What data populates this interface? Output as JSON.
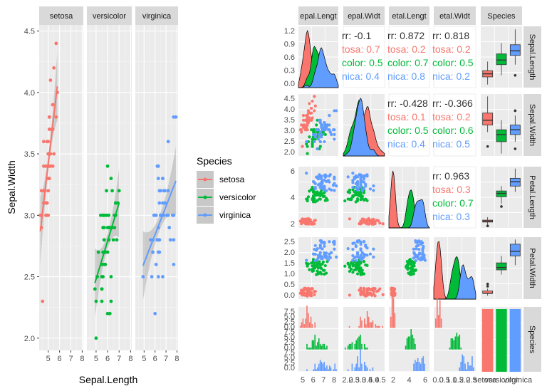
{
  "colors": {
    "setosa": "#F8766D",
    "versicolor": "#00BA38",
    "virginica": "#619CFF",
    "panel": "#EBEBEB",
    "strip": "#D9D9D9",
    "grid": "#FFFFFF"
  },
  "chart_data": [
    {
      "type": "scatter",
      "xlabel": "Sepal.Length",
      "ylabel": "Sepal.Width",
      "facets": [
        "setosa",
        "versicolor",
        "virginica"
      ],
      "xlim": [
        4.2,
        8.1
      ],
      "ylim": [
        1.9,
        4.55
      ],
      "xticks": [
        5,
        6,
        7,
        8
      ],
      "yticks": [
        2.0,
        2.5,
        3.0,
        3.5,
        4.0,
        4.5
      ],
      "ytick_labels": [
        "2.0",
        "2.5",
        "3.0",
        "3.5",
        "4.0",
        "4.5"
      ],
      "legend": {
        "title": "Species",
        "items": [
          "setosa",
          "versicolor",
          "virginica"
        ],
        "position": "right"
      },
      "series": [
        {
          "name": "setosa",
          "x": [
            5.1,
            4.9,
            4.7,
            4.6,
            5.0,
            5.4,
            4.6,
            5.0,
            4.4,
            4.9,
            5.4,
            4.8,
            4.8,
            4.3,
            5.8,
            5.7,
            5.4,
            5.1,
            5.7,
            5.1,
            5.4,
            5.1,
            4.6,
            5.1,
            4.8,
            5.0,
            5.0,
            5.2,
            5.2,
            4.7,
            4.8,
            5.4,
            5.2,
            5.5,
            4.9,
            5.0,
            5.5,
            4.9,
            4.4,
            5.1,
            5.0,
            4.5,
            4.4,
            5.0,
            5.1,
            4.8,
            5.1,
            4.6,
            5.3,
            5.0
          ],
          "y": [
            3.5,
            3.0,
            3.2,
            3.1,
            3.6,
            3.9,
            3.4,
            3.4,
            2.9,
            3.1,
            3.7,
            3.4,
            3.0,
            3.0,
            4.0,
            4.4,
            3.9,
            3.5,
            3.8,
            3.8,
            3.4,
            3.7,
            3.6,
            3.3,
            3.4,
            3.0,
            3.4,
            3.5,
            3.4,
            3.2,
            3.1,
            3.4,
            4.1,
            4.2,
            3.1,
            3.2,
            3.5,
            3.6,
            3.0,
            3.4,
            3.5,
            2.3,
            3.2,
            3.5,
            3.8,
            3.0,
            3.8,
            3.2,
            3.7,
            3.3
          ],
          "fit": [
            [
              4.3,
              2.87
            ],
            [
              5.8,
              4.05
            ]
          ]
        },
        {
          "name": "versicolor",
          "x": [
            7.0,
            6.4,
            6.9,
            5.5,
            6.5,
            5.7,
            6.3,
            4.9,
            6.6,
            5.2,
            5.0,
            5.9,
            6.0,
            6.1,
            5.6,
            6.7,
            5.6,
            5.8,
            6.2,
            5.6,
            5.9,
            6.1,
            6.3,
            6.1,
            6.4,
            6.6,
            6.8,
            6.7,
            6.0,
            5.7,
            5.5,
            5.5,
            5.8,
            6.0,
            5.4,
            6.0,
            6.7,
            6.3,
            5.6,
            5.5,
            5.5,
            6.1,
            5.8,
            5.0,
            5.6,
            5.7,
            5.7,
            6.2,
            5.1,
            5.7
          ],
          "y": [
            3.2,
            3.2,
            3.1,
            2.3,
            2.8,
            2.8,
            3.3,
            2.4,
            2.9,
            2.7,
            2.0,
            3.0,
            2.2,
            2.9,
            2.9,
            3.1,
            3.0,
            2.7,
            2.2,
            2.5,
            3.2,
            2.8,
            2.5,
            2.8,
            2.9,
            3.0,
            2.8,
            3.0,
            2.9,
            2.6,
            2.4,
            2.4,
            2.7,
            2.7,
            3.0,
            3.4,
            3.1,
            2.3,
            3.0,
            2.5,
            2.6,
            3.0,
            2.6,
            2.3,
            2.7,
            3.0,
            2.9,
            2.9,
            2.5,
            2.8
          ],
          "fit": [
            [
              4.9,
              2.45
            ],
            [
              7.0,
              3.1
            ]
          ]
        },
        {
          "name": "virginica",
          "x": [
            6.3,
            5.8,
            7.1,
            6.3,
            6.5,
            7.6,
            4.9,
            7.3,
            6.7,
            7.2,
            6.5,
            6.4,
            6.8,
            5.7,
            5.8,
            6.4,
            6.5,
            7.7,
            7.7,
            6.0,
            6.9,
            5.6,
            7.7,
            6.3,
            6.7,
            7.2,
            6.2,
            6.1,
            6.4,
            7.2,
            7.4,
            7.9,
            6.4,
            6.3,
            6.1,
            7.7,
            6.3,
            6.4,
            6.0,
            6.9,
            6.7,
            6.9,
            5.8,
            6.8,
            6.7,
            6.7,
            6.3,
            6.5,
            6.2,
            5.9
          ],
          "y": [
            3.3,
            2.7,
            3.0,
            2.9,
            3.0,
            3.0,
            2.5,
            2.9,
            2.5,
            3.6,
            3.2,
            2.7,
            3.0,
            2.5,
            2.8,
            3.2,
            3.0,
            3.8,
            2.6,
            2.2,
            3.2,
            2.8,
            2.8,
            2.7,
            3.3,
            3.2,
            2.8,
            3.0,
            2.8,
            3.0,
            2.8,
            3.8,
            2.8,
            2.8,
            2.6,
            3.0,
            3.4,
            3.1,
            3.0,
            3.1,
            3.1,
            3.1,
            2.7,
            3.2,
            3.3,
            3.0,
            2.5,
            3.0,
            3.4,
            3.0
          ],
          "fit": [
            [
              4.9,
              2.59
            ],
            [
              7.9,
              3.28
            ]
          ]
        }
      ]
    },
    {
      "type": "scatter",
      "subtype": "pairs-matrix",
      "variables": [
        "Sepal.Length",
        "Sepal.Width",
        "Petal.Length",
        "Petal.Width",
        "Species"
      ],
      "column_strip_labels": [
        "epal.Lengt",
        "epal.Widt",
        "etal.Lengt",
        "etal.Widt",
        "Species"
      ],
      "row_strip_labels": [
        "Sepal.Length",
        "Sepal.Width",
        "Petal.Length",
        "Petal.Width",
        "Species"
      ],
      "correlation_text": [
        {
          "row": 0,
          "col": 1,
          "lines": [
            "rr: -0.1",
            "tosa: 0.7",
            "color: 0.5",
            "nica: 0.4"
          ]
        },
        {
          "row": 0,
          "col": 2,
          "lines": [
            "rr: 0.872",
            "tosa: 0.2",
            "color: 0.7",
            "nica: 0.8"
          ]
        },
        {
          "row": 0,
          "col": 3,
          "lines": [
            "rr: 0.818",
            "tosa: 0.2",
            "color: 0.5",
            "nica: 0.2"
          ]
        },
        {
          "row": 1,
          "col": 2,
          "lines": [
            "rr: -0.428",
            "tosa: 0.1",
            "color: 0.5",
            "nica: 0.4"
          ]
        },
        {
          "row": 1,
          "col": 3,
          "lines": [
            "rr: -0.366",
            "tosa: 0.2",
            "color: 0.6",
            "nica: 0.5"
          ]
        },
        {
          "row": 2,
          "col": 3,
          "lines": [
            "rr: 0.963",
            "tosa: 0.3",
            "color: 0.7",
            "nica: 0.3"
          ]
        }
      ],
      "row_ticks": [
        [
          "1.2",
          "0.9",
          "0.6",
          "0.3",
          "0.0"
        ],
        [
          "4.5",
          "4.0",
          "3.5",
          "3.0",
          "2.5",
          "2.0"
        ],
        [
          "6",
          "4",
          "2"
        ],
        [
          "2.5",
          "2.0",
          "1.5",
          "1.0",
          "0.5",
          "0.0"
        ],
        [
          "7.5",
          "5.0",
          "2.5",
          "0.0",
          "7.5",
          "5.0",
          "2.5",
          "0.0",
          "7.5",
          "5.0",
          "2.5",
          "0.0"
        ]
      ],
      "col_ticks": [
        [
          "5",
          "6",
          "7",
          "8"
        ],
        [
          "2.0",
          "2.5",
          "3.0",
          "3.5",
          "4.0",
          "4.5"
        ],
        [
          "2",
          "4",
          "6"
        ],
        [
          "0.0",
          "0.5",
          "1.0",
          "1.5",
          "2.0",
          "2.5"
        ],
        [
          "setosa",
          "versicolor",
          "virginica"
        ]
      ],
      "boxplot_stats": {
        "Sepal.Length": {
          "setosa": [
            4.3,
            4.8,
            5.0,
            5.2,
            5.8
          ],
          "versicolor": [
            4.9,
            5.6,
            5.9,
            6.3,
            7.0
          ],
          "virginica": [
            5.6,
            6.2,
            6.5,
            6.9,
            7.9
          ],
          "outliers": {
            "virginica": [
              4.9
            ]
          }
        },
        "Sepal.Width": {
          "setosa": [
            2.9,
            3.2,
            3.4,
            3.7,
            4.4
          ],
          "versicolor": [
            2.0,
            2.5,
            2.8,
            3.0,
            3.4
          ],
          "virginica": [
            2.5,
            2.8,
            3.0,
            3.2,
            3.6
          ],
          "outliers": {
            "setosa": [
              2.3
            ],
            "virginica": [
              2.2,
              3.8,
              3.8
            ]
          }
        },
        "Petal.Length": {
          "setosa": [
            1.1,
            1.4,
            1.5,
            1.6,
            1.9
          ],
          "versicolor": [
            3.3,
            4.0,
            4.35,
            4.6,
            5.1
          ],
          "virginica": [
            4.5,
            5.1,
            5.55,
            5.9,
            6.9
          ],
          "outliers": {
            "setosa": [
              1.0
            ],
            "versicolor": [
              3.0
            ]
          }
        },
        "Petal.Width": {
          "setosa": [
            0.1,
            0.2,
            0.2,
            0.3,
            0.4
          ],
          "versicolor": [
            1.0,
            1.2,
            1.3,
            1.5,
            1.8
          ],
          "virginica": [
            1.4,
            1.8,
            2.0,
            2.3,
            2.5
          ],
          "outliers": {
            "setosa": [
              0.5,
              0.6
            ]
          }
        }
      },
      "species_counts": {
        "setosa": 50,
        "versicolor": 50,
        "virginica": 50
      }
    }
  ]
}
